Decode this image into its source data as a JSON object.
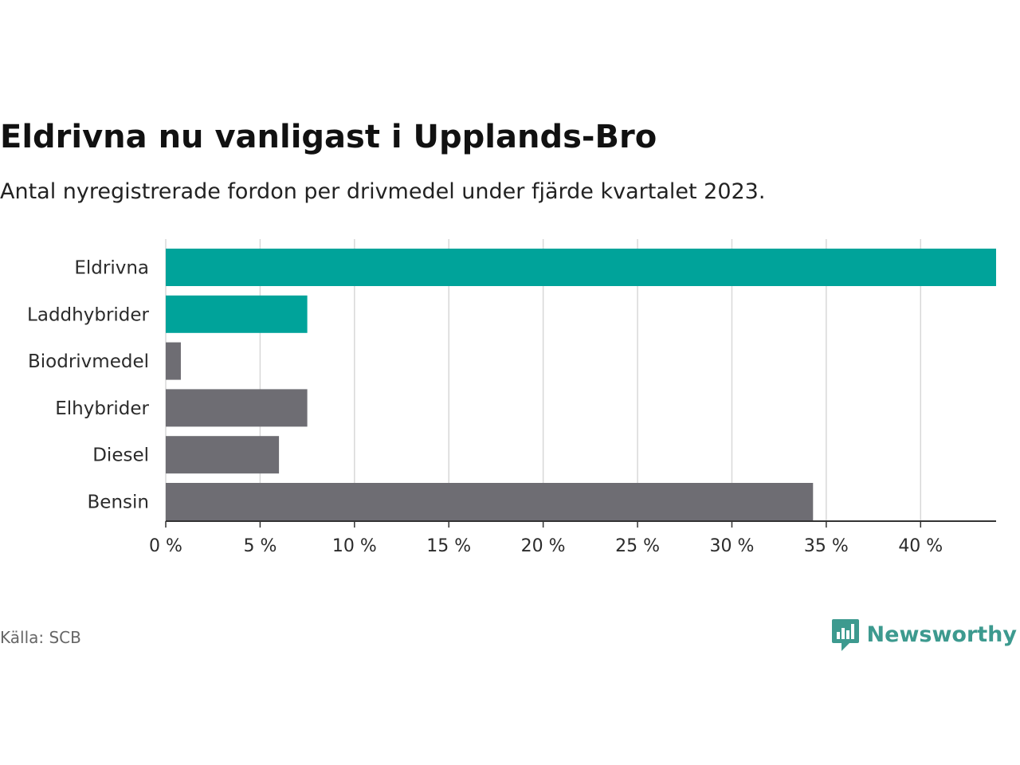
{
  "title": "Eldrivna nu vanligast i Upplands-Bro",
  "subtitle": "Antal nyregistrerade fordon per drivmedel under fjärde kvartalet 2023.",
  "source": "Källa: SCB",
  "brand": {
    "name": "Newsworthy",
    "icon": "bar-chart-speech-bubble-icon",
    "color": "#3d9a8f"
  },
  "colors": {
    "highlight": "#00a39a",
    "default": "#6e6d73",
    "grid": "#d8d8d8",
    "axis": "#333333"
  },
  "chart_data": {
    "type": "bar",
    "orientation": "horizontal",
    "title": "Eldrivna nu vanligast i Upplands-Bro",
    "subtitle": "Antal nyregistrerade fordon per drivmedel under fjärde kvartalet 2023.",
    "xlabel": "",
    "ylabel": "",
    "unit": "%",
    "xlim": [
      0,
      44
    ],
    "xticks": [
      0,
      5,
      10,
      15,
      20,
      25,
      30,
      35,
      40
    ],
    "xtick_labels": [
      "0 %",
      "5 %",
      "10 %",
      "15 %",
      "20 %",
      "25 %",
      "30 %",
      "35 %",
      "40 %"
    ],
    "grid": true,
    "categories": [
      "Eldrivna",
      "Laddhybrider",
      "Biodrivmedel",
      "Elhybrider",
      "Diesel",
      "Bensin"
    ],
    "values": [
      44.0,
      7.5,
      0.8,
      7.5,
      6.0,
      34.3
    ],
    "highlighted": [
      true,
      true,
      false,
      false,
      false,
      false
    ]
  }
}
